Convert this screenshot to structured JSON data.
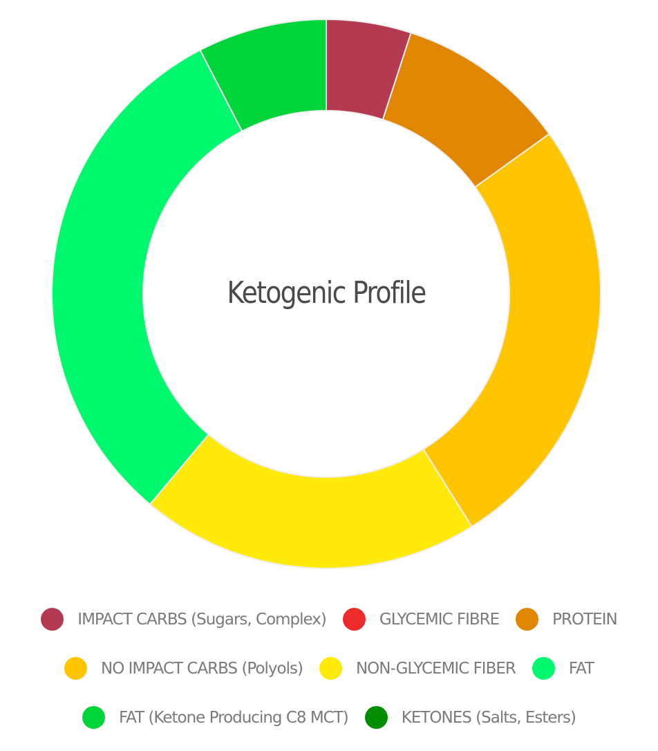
{
  "chart_data": {
    "type": "pie",
    "variant": "donut",
    "title": "Ketogenic Profile",
    "center": [
      472,
      425
    ],
    "outer_radius": 397,
    "inner_radius": 265,
    "start_angle_deg": 0,
    "legend_position": "bottom",
    "categories": [
      "IMPACT CARBS (Sugars, Complex)",
      "GLYCEMIC FIBRE",
      "PROTEIN",
      "NO IMPACT CARBS (Polyols)",
      "NON-GLYCEMIC FIBER",
      "FAT",
      "FAT (Ketone Producing C8 MCT)",
      "KETONES (Salts, Esters)"
    ],
    "values": [
      5.0,
      0,
      10.1,
      26.0,
      20.0,
      31.3,
      7.6,
      0
    ],
    "colors": [
      "#b33a50",
      "#ee2b2b",
      "#e08600",
      "#ffc500",
      "#ffea0c",
      "#00f86f",
      "#00d43b",
      "#008e00"
    ],
    "slice_border_color": "#eeeeee"
  },
  "legend": {
    "rows": [
      [
        0,
        1,
        2
      ],
      [
        3,
        4,
        5
      ],
      [
        6,
        7
      ]
    ]
  }
}
